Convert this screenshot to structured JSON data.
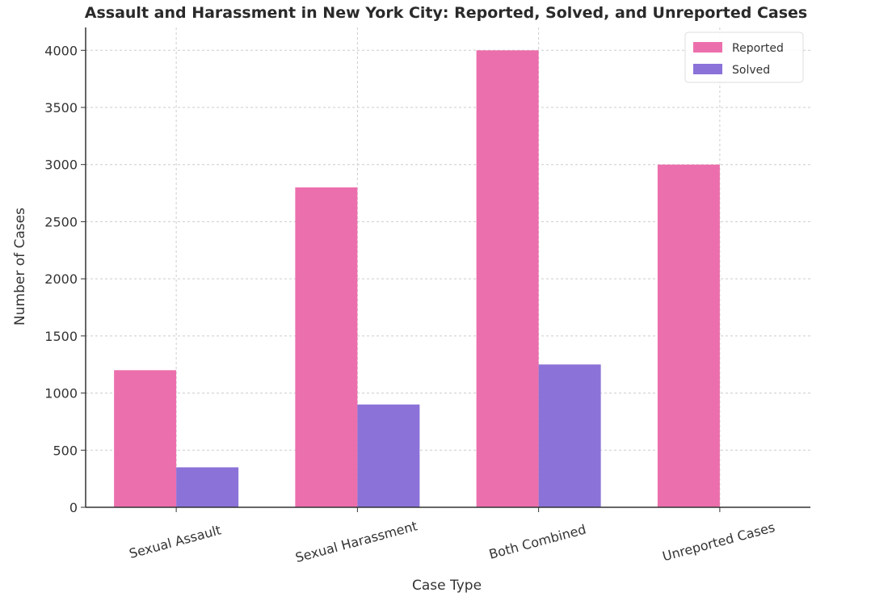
{
  "chart_data": {
    "type": "bar",
    "title": "Assault and Harassment in New York City: Reported, Solved, and Unreported Cases",
    "xlabel": "Case Type",
    "ylabel": "Number of Cases",
    "categories": [
      "Sexual Assault",
      "Sexual Harassment",
      "Both Combined",
      "Unreported Cases"
    ],
    "series": [
      {
        "name": "Reported",
        "color": "#ec6fad",
        "values": [
          1200,
          2800,
          4000,
          3000
        ]
      },
      {
        "name": "Solved",
        "color": "#8b72d8",
        "values": [
          350,
          900,
          1250,
          null
        ]
      }
    ],
    "ylim": [
      0,
      4200
    ],
    "yticks": [
      0,
      500,
      1000,
      1500,
      2000,
      2500,
      3000,
      3500,
      4000
    ],
    "grid": true,
    "legend_position": "top-right"
  }
}
